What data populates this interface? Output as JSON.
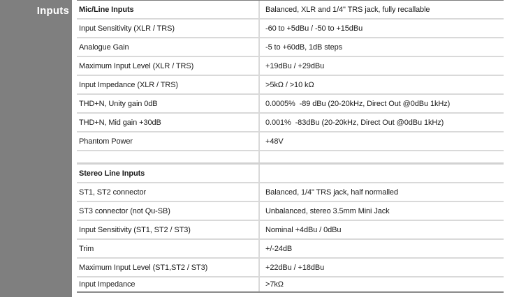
{
  "sidebar": {
    "label": "Inputs"
  },
  "colors": {
    "sidebar_bg": "#7f7f7f",
    "separator": "#d9d9d9",
    "border_dark": "#8a8a8a",
    "text": "#1a1a1a"
  },
  "table": {
    "rows": [
      {
        "label": "Mic/Line Inputs",
        "value": "Balanced, XLR and 1/4\" TRS jack, fully recallable",
        "bold": true
      },
      {
        "label": "Input Sensitivity (XLR / TRS)",
        "value": "-60 to +5dBu / -50 to +15dBu"
      },
      {
        "label": "Analogue Gain",
        "value": "-5 to +60dB, 1dB steps"
      },
      {
        "label": "Maximum Input Level (XLR / TRS)",
        "value": "+19dBu / +29dBu"
      },
      {
        "label": "Input Impedance (XLR / TRS)",
        "value": ">5kΩ / >10 kΩ"
      },
      {
        "label": "THD+N, Unity gain 0dB",
        "value": "0.0005%  -89 dBu (20-20kHz, Direct Out @0dBu 1kHz)"
      },
      {
        "label": "THD+N, Mid gain +30dB",
        "value": "0.001%  -83dBu (20-20kHz, Direct Out @0dBu 1kHz)"
      },
      {
        "label": "Phantom Power",
        "value": "+48V"
      },
      {
        "label": "",
        "value": "",
        "spacer": true
      },
      {
        "label": "Stereo Line Inputs",
        "value": "",
        "bold": true
      },
      {
        "label": "ST1, ST2 connector",
        "value": "Balanced, 1/4\" TRS jack, half normalled"
      },
      {
        "label": "ST3 connector (not Qu-SB)",
        "value": "Unbalanced, stereo 3.5mm Mini Jack"
      },
      {
        "label": "Input Sensitivity (ST1, ST2 / ST3)",
        "value": "Nominal +4dBu / 0dBu"
      },
      {
        "label": "Trim",
        "value": "+/-24dB"
      },
      {
        "label": "Maximum Input Level (ST1,ST2 / ST3)",
        "value": "+22dBu / +18dBu"
      },
      {
        "label": "Input Impedance",
        "value": ">7kΩ"
      }
    ]
  }
}
